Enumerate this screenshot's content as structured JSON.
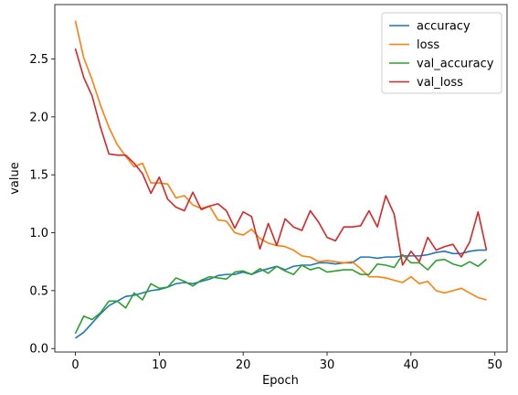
{
  "chart_data": {
    "type": "line",
    "title": "",
    "xlabel": "Epoch",
    "ylabel": "value",
    "xlim": [
      -2.45,
      51.45
    ],
    "ylim": [
      -0.03,
      2.97
    ],
    "xticks": [
      0,
      10,
      20,
      30,
      40,
      50
    ],
    "yticks": [
      0.0,
      0.5,
      1.0,
      1.5,
      2.0,
      2.5
    ],
    "xtick_labels": [
      "0",
      "10",
      "20",
      "30",
      "40",
      "50"
    ],
    "ytick_labels": [
      "0.0",
      "0.5",
      "1.0",
      "1.5",
      "2.0",
      "2.5"
    ],
    "grid": false,
    "legend_position": "top-right",
    "x": [
      0,
      1,
      2,
      3,
      4,
      5,
      6,
      7,
      8,
      9,
      10,
      11,
      12,
      13,
      14,
      15,
      16,
      17,
      18,
      19,
      20,
      21,
      22,
      23,
      24,
      25,
      26,
      27,
      28,
      29,
      30,
      31,
      32,
      33,
      34,
      35,
      36,
      37,
      38,
      39,
      40,
      41,
      42,
      43,
      44,
      45,
      46,
      47,
      48,
      49
    ],
    "series": [
      {
        "name": "accuracy",
        "color": "#1f77b4",
        "values": [
          0.09,
          0.14,
          0.22,
          0.3,
          0.37,
          0.41,
          0.45,
          0.46,
          0.48,
          0.5,
          0.51,
          0.53,
          0.56,
          0.57,
          0.56,
          0.58,
          0.6,
          0.63,
          0.64,
          0.64,
          0.66,
          0.64,
          0.67,
          0.69,
          0.71,
          0.68,
          0.71,
          0.72,
          0.72,
          0.74,
          0.74,
          0.73,
          0.74,
          0.74,
          0.79,
          0.79,
          0.78,
          0.79,
          0.79,
          0.8,
          0.8,
          0.8,
          0.81,
          0.83,
          0.84,
          0.82,
          0.82,
          0.84,
          0.85,
          0.85
        ]
      },
      {
        "name": "loss",
        "color": "#ff7f0e",
        "values": [
          2.83,
          2.51,
          2.32,
          2.1,
          1.91,
          1.76,
          1.66,
          1.57,
          1.6,
          1.43,
          1.43,
          1.42,
          1.3,
          1.32,
          1.24,
          1.21,
          1.23,
          1.11,
          1.1,
          1.0,
          0.98,
          1.03,
          0.95,
          0.91,
          0.89,
          0.88,
          0.85,
          0.8,
          0.79,
          0.75,
          0.76,
          0.75,
          0.74,
          0.75,
          0.69,
          0.62,
          0.62,
          0.61,
          0.59,
          0.57,
          0.62,
          0.56,
          0.58,
          0.5,
          0.48,
          0.5,
          0.52,
          0.48,
          0.44,
          0.42
        ]
      },
      {
        "name": "val_accuracy",
        "color": "#2ca02c",
        "values": [
          0.13,
          0.28,
          0.25,
          0.31,
          0.41,
          0.41,
          0.35,
          0.48,
          0.42,
          0.56,
          0.52,
          0.53,
          0.61,
          0.58,
          0.54,
          0.59,
          0.62,
          0.61,
          0.6,
          0.66,
          0.67,
          0.64,
          0.69,
          0.65,
          0.71,
          0.67,
          0.64,
          0.72,
          0.68,
          0.7,
          0.66,
          0.67,
          0.68,
          0.68,
          0.64,
          0.64,
          0.73,
          0.72,
          0.7,
          0.81,
          0.74,
          0.74,
          0.68,
          0.76,
          0.77,
          0.73,
          0.71,
          0.75,
          0.71,
          0.77
        ]
      },
      {
        "name": "val_loss",
        "color": "#d62728",
        "values": [
          2.59,
          2.34,
          2.18,
          1.91,
          1.68,
          1.67,
          1.67,
          1.6,
          1.51,
          1.34,
          1.48,
          1.29,
          1.22,
          1.19,
          1.35,
          1.2,
          1.23,
          1.25,
          1.19,
          1.04,
          1.18,
          1.14,
          0.86,
          1.08,
          0.89,
          1.12,
          1.05,
          1.02,
          1.19,
          1.09,
          0.96,
          0.93,
          1.05,
          1.05,
          1.06,
          1.19,
          1.05,
          1.32,
          1.16,
          0.72,
          0.84,
          0.75,
          0.96,
          0.85,
          0.88,
          0.9,
          0.79,
          0.92,
          1.18,
          0.85
        ]
      }
    ]
  }
}
